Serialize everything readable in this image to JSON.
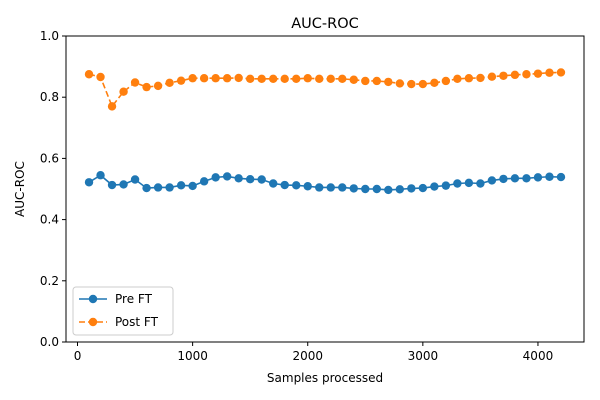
{
  "chart_data": {
    "type": "line",
    "title": "AUC-ROC",
    "xlabel": "Samples processed",
    "ylabel": "AUC-ROC",
    "xlim": [
      -100,
      4400
    ],
    "ylim": [
      0.0,
      1.0
    ],
    "xticks": [
      0,
      1000,
      2000,
      3000,
      4000
    ],
    "yticks": [
      0.0,
      0.2,
      0.4,
      0.6,
      0.8,
      1.0
    ],
    "ytick_labels": [
      "0.0",
      "0.2",
      "0.4",
      "0.6",
      "0.8",
      "1.0"
    ],
    "grid": false,
    "legend_position": "lower-left",
    "x": [
      100,
      200,
      300,
      400,
      500,
      600,
      700,
      800,
      900,
      1000,
      1100,
      1200,
      1300,
      1400,
      1500,
      1600,
      1700,
      1800,
      1900,
      2000,
      2100,
      2200,
      2300,
      2400,
      2500,
      2600,
      2700,
      2800,
      2900,
      3000,
      3100,
      3200,
      3300,
      3400,
      3500,
      3600,
      3700,
      3800,
      3900,
      4000,
      4100,
      4200
    ],
    "series": [
      {
        "name": "Pre FT",
        "color": "#1f77b4",
        "line_style": "solid",
        "marker": "circle",
        "values": [
          0.522,
          0.545,
          0.513,
          0.515,
          0.531,
          0.503,
          0.505,
          0.505,
          0.512,
          0.51,
          0.525,
          0.538,
          0.541,
          0.535,
          0.532,
          0.531,
          0.518,
          0.513,
          0.512,
          0.509,
          0.505,
          0.505,
          0.505,
          0.502,
          0.5,
          0.5,
          0.497,
          0.499,
          0.502,
          0.503,
          0.508,
          0.511,
          0.518,
          0.52,
          0.518,
          0.528,
          0.533,
          0.535,
          0.535,
          0.538,
          0.54,
          0.539
        ]
      },
      {
        "name": "Post FT",
        "color": "#ff7f0e",
        "line_style": "dashed",
        "marker": "circle",
        "values": [
          0.875,
          0.866,
          0.77,
          0.818,
          0.848,
          0.833,
          0.837,
          0.847,
          0.854,
          0.862,
          0.862,
          0.862,
          0.862,
          0.863,
          0.86,
          0.86,
          0.86,
          0.86,
          0.86,
          0.862,
          0.86,
          0.86,
          0.86,
          0.857,
          0.853,
          0.853,
          0.85,
          0.845,
          0.843,
          0.843,
          0.847,
          0.853,
          0.86,
          0.862,
          0.863,
          0.867,
          0.87,
          0.873,
          0.875,
          0.877,
          0.88,
          0.881
        ]
      }
    ]
  }
}
